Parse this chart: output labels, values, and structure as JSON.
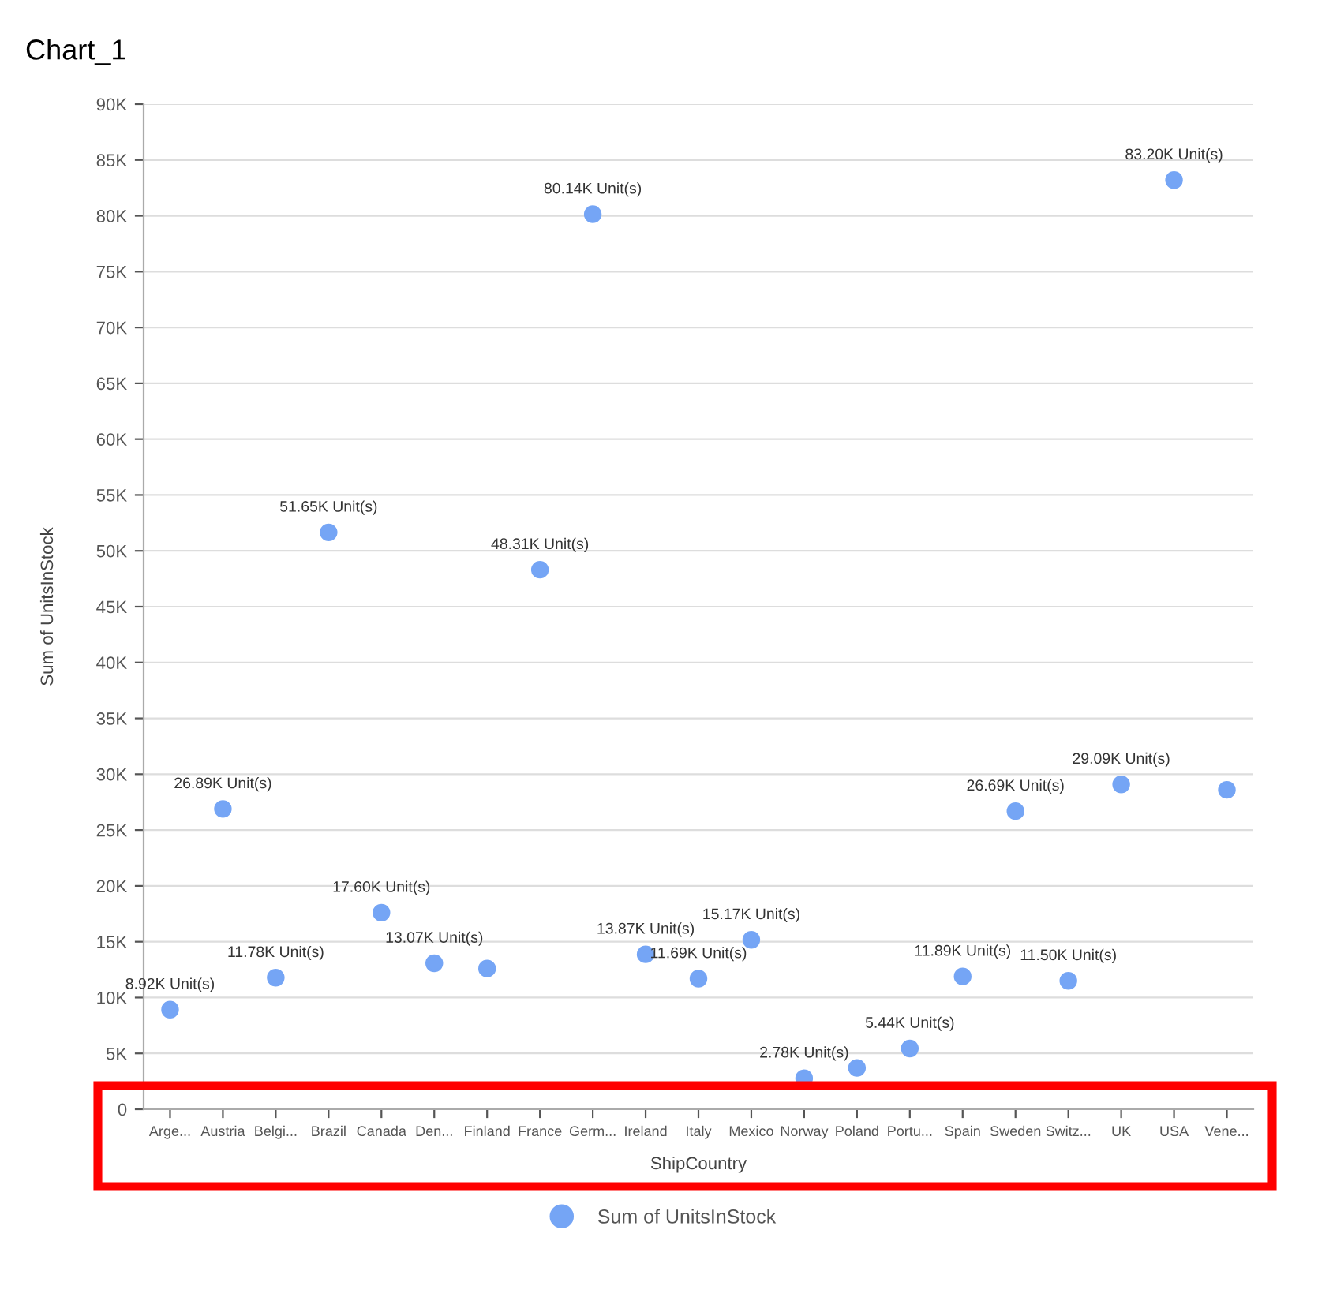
{
  "chart_data": {
    "type": "scatter",
    "title": "Chart_1",
    "xlabel": "ShipCountry",
    "ylabel": "Sum of UnitsInStock",
    "categories": [
      "Arge...",
      "Austria",
      "Belgi...",
      "Brazil",
      "Canada",
      "Den...",
      "Finland",
      "France",
      "Germ...",
      "Ireland",
      "Italy",
      "Mexico",
      "Norway",
      "Poland",
      "Portu...",
      "Spain",
      "Sweden",
      "Switz...",
      "UK",
      "USA",
      "Vene..."
    ],
    "series": [
      {
        "name": "Sum of UnitsInStock",
        "color": "#75a5f5",
        "values": [
          8920,
          26890,
          11780,
          51650,
          17600,
          13070,
          12600,
          48310,
          80140,
          13870,
          11690,
          15170,
          2780,
          3700,
          5440,
          11890,
          26690,
          11500,
          29090,
          83200,
          28600
        ],
        "value_labels": [
          "8.92K Unit(s)",
          "26.89K Unit(s)",
          "11.78K Unit(s)",
          "51.65K Unit(s)",
          "17.60K Unit(s)",
          "13.07K Unit(s)",
          null,
          "48.31K Unit(s)",
          "80.14K Unit(s)",
          "13.87K Unit(s)",
          "11.69K Unit(s)",
          "15.17K Unit(s)",
          "2.78K Unit(s)",
          null,
          "5.44K Unit(s)",
          "11.89K Unit(s)",
          "26.69K Unit(s)",
          "11.50K Unit(s)",
          "29.09K Unit(s)",
          "83.20K Unit(s)",
          null
        ]
      }
    ],
    "ylim": [
      0,
      90000
    ],
    "yticks": [
      0,
      {
        "value": 5000,
        "label": "5K"
      },
      {
        "value": 10000,
        "label": "10K"
      },
      {
        "value": 15000,
        "label": "15K"
      },
      {
        "value": 20000,
        "label": "20K"
      },
      {
        "value": 25000,
        "label": "25K"
      },
      {
        "value": 30000,
        "label": "30K"
      },
      {
        "value": 35000,
        "label": "35K"
      },
      {
        "value": 40000,
        "label": "40K"
      },
      {
        "value": 45000,
        "label": "45K"
      },
      {
        "value": 50000,
        "label": "50K"
      },
      {
        "value": 55000,
        "label": "55K"
      },
      {
        "value": 60000,
        "label": "60K"
      },
      {
        "value": 65000,
        "label": "65K"
      },
      {
        "value": 70000,
        "label": "70K"
      },
      {
        "value": 75000,
        "label": "75K"
      },
      {
        "value": 80000,
        "label": "80K"
      },
      {
        "value": 85000,
        "label": "85K"
      },
      {
        "value": 90000,
        "label": "90K"
      }
    ],
    "grid": "y",
    "legend": "bottom",
    "marker": "circle"
  }
}
